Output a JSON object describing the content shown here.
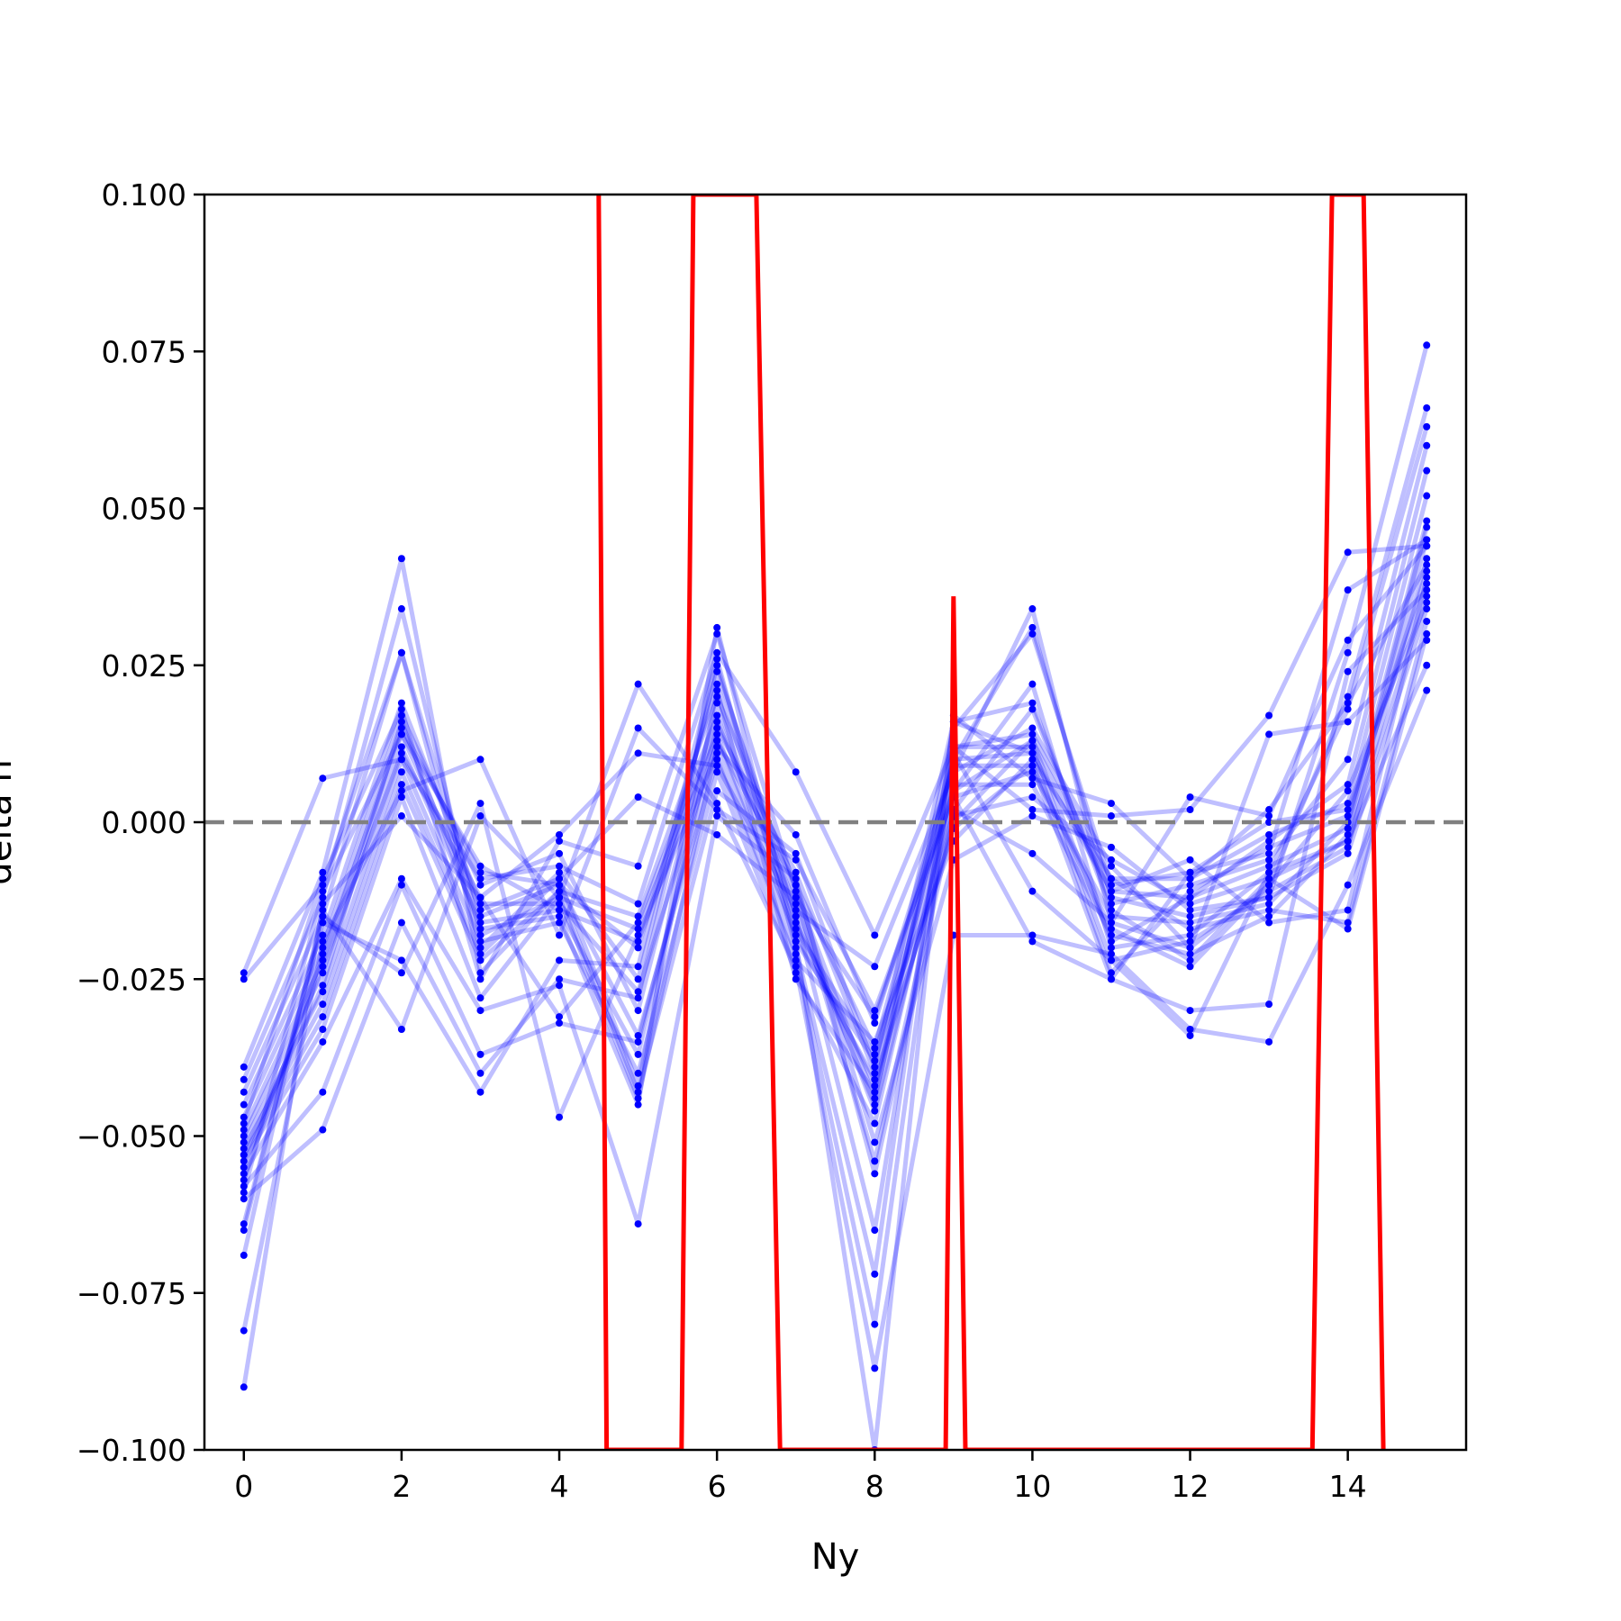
{
  "chart_data": {
    "type": "line",
    "xlabel": "Ny",
    "ylabel": "delta n",
    "xlim": [
      -0.5,
      15.5
    ],
    "ylim": [
      -0.1,
      0.1
    ],
    "x_ticks": [
      0,
      2,
      4,
      6,
      8,
      10,
      12,
      14
    ],
    "x_tick_labels": [
      "0",
      "2",
      "4",
      "6",
      "8",
      "10",
      "12",
      "14"
    ],
    "y_ticks": [
      -0.1,
      -0.075,
      -0.05,
      -0.025,
      0.0,
      0.025,
      0.05,
      0.075,
      0.1
    ],
    "y_tick_labels": [
      "−0.100",
      "−0.075",
      "−0.050",
      "−0.025",
      "0.000",
      "0.025",
      "0.050",
      "0.075",
      "0.100"
    ],
    "reference_line": {
      "y": 0.0,
      "style": "dashed",
      "color": "#808080"
    },
    "series_color": "#0000ff",
    "mean_color": "#ff0000",
    "x": [
      0,
      1,
      2,
      3,
      4,
      5,
      6,
      7,
      8,
      9,
      10,
      11,
      12,
      13,
      14,
      15
    ],
    "series": [
      {
        "values": [
          -0.024,
          0.007,
          0.01,
          -0.009,
          -0.007,
          -0.013,
          0.027,
          0.008,
          -0.018,
          0.012,
          0.002,
          0.001,
          0.002,
          0.017,
          0.043,
          0.044
        ]
      },
      {
        "values": [
          -0.025,
          -0.01,
          0.027,
          -0.015,
          -0.01,
          -0.02,
          0.022,
          -0.015,
          -0.045,
          0.015,
          0.03,
          -0.01,
          -0.008,
          -0.005,
          0.037,
          0.045
        ]
      },
      {
        "values": [
          -0.039,
          -0.008,
          0.042,
          -0.024,
          -0.011,
          -0.015,
          0.02,
          -0.01,
          -0.036,
          0.01,
          0.031,
          -0.012,
          -0.015,
          -0.012,
          0.027,
          0.076
        ]
      },
      {
        "values": [
          -0.041,
          -0.012,
          0.034,
          -0.018,
          -0.012,
          -0.017,
          0.015,
          -0.008,
          -0.04,
          0.008,
          0.034,
          -0.016,
          -0.02,
          -0.01,
          0.02,
          0.066
        ]
      },
      {
        "values": [
          -0.043,
          -0.015,
          0.027,
          -0.02,
          -0.008,
          -0.025,
          0.024,
          -0.012,
          -0.031,
          0.005,
          0.022,
          -0.02,
          -0.018,
          -0.008,
          0.018,
          0.063
        ]
      },
      {
        "values": [
          -0.045,
          -0.018,
          0.019,
          -0.013,
          -0.013,
          -0.027,
          0.013,
          -0.019,
          -0.038,
          0.002,
          0.018,
          -0.013,
          -0.01,
          -0.006,
          0.01,
          0.06
        ]
      },
      {
        "values": [
          -0.047,
          -0.02,
          0.017,
          -0.01,
          -0.005,
          -0.03,
          0.019,
          -0.016,
          -0.042,
          0.0,
          0.013,
          -0.011,
          -0.012,
          -0.003,
          0.006,
          0.056
        ]
      },
      {
        "values": [
          -0.049,
          -0.022,
          0.015,
          -0.008,
          -0.01,
          -0.034,
          0.01,
          -0.022,
          -0.035,
          -0.003,
          0.01,
          -0.009,
          -0.009,
          -0.002,
          0.003,
          0.052
        ]
      },
      {
        "values": [
          -0.05,
          -0.024,
          0.012,
          -0.016,
          -0.014,
          -0.037,
          0.016,
          -0.013,
          -0.046,
          0.004,
          0.008,
          -0.015,
          -0.016,
          -0.013,
          0.0,
          0.048
        ]
      },
      {
        "values": [
          -0.051,
          -0.027,
          0.01,
          -0.019,
          -0.016,
          -0.04,
          0.008,
          -0.024,
          -0.048,
          0.006,
          0.006,
          -0.018,
          -0.021,
          -0.015,
          -0.002,
          0.045
        ]
      },
      {
        "values": [
          -0.052,
          -0.029,
          0.008,
          -0.021,
          -0.009,
          -0.042,
          0.021,
          -0.025,
          -0.043,
          0.012,
          0.012,
          -0.022,
          -0.019,
          -0.011,
          -0.004,
          0.042
        ]
      },
      {
        "values": [
          -0.053,
          -0.031,
          0.006,
          -0.022,
          -0.011,
          -0.043,
          0.005,
          -0.005,
          -0.039,
          0.016,
          0.011,
          -0.024,
          -0.011,
          -0.004,
          0.001,
          0.04
        ]
      },
      {
        "values": [
          -0.054,
          -0.033,
          0.004,
          -0.028,
          -0.012,
          -0.044,
          0.012,
          -0.002,
          -0.032,
          0.009,
          0.009,
          -0.025,
          -0.008,
          0.0,
          0.002,
          0.038
        ]
      },
      {
        "values": [
          -0.056,
          -0.035,
          -0.009,
          -0.03,
          -0.026,
          -0.064,
          0.001,
          -0.009,
          -0.056,
          0.001,
          0.004,
          -0.006,
          -0.013,
          -0.009,
          -0.003,
          0.036
        ]
      },
      {
        "values": [
          -0.058,
          -0.043,
          -0.01,
          -0.037,
          -0.032,
          -0.035,
          0.013,
          -0.01,
          -0.051,
          -0.006,
          0.001,
          -0.004,
          -0.014,
          -0.012,
          -0.005,
          0.034
        ]
      },
      {
        "values": [
          -0.06,
          -0.049,
          -0.016,
          -0.04,
          -0.025,
          -0.028,
          0.025,
          -0.015,
          -0.065,
          0.012,
          0.014,
          -0.009,
          -0.017,
          -0.014,
          -0.016,
          0.032
        ]
      },
      {
        "values": [
          -0.064,
          -0.016,
          -0.022,
          -0.043,
          -0.022,
          -0.023,
          0.026,
          -0.02,
          -0.072,
          0.016,
          0.019,
          -0.014,
          -0.022,
          -0.009,
          -0.017,
          0.03
        ]
      },
      {
        "values": [
          -0.065,
          -0.015,
          -0.024,
          0.003,
          -0.047,
          -0.018,
          0.011,
          -0.021,
          -0.08,
          0.011,
          -0.011,
          -0.022,
          -0.034,
          -0.008,
          -0.003,
          0.025
        ]
      },
      {
        "values": [
          -0.069,
          -0.014,
          -0.033,
          0.001,
          -0.012,
          0.022,
          0.003,
          -0.023,
          -0.087,
          -0.018,
          -0.018,
          -0.021,
          -0.033,
          -0.035,
          -0.01,
          0.021
        ]
      },
      {
        "values": [
          -0.081,
          -0.019,
          0.005,
          0.01,
          -0.018,
          0.015,
          0.002,
          -0.006,
          -0.03,
          0.004,
          -0.019,
          -0.025,
          -0.03,
          -0.029,
          0.024,
          0.037
        ]
      },
      {
        "values": [
          -0.09,
          -0.013,
          0.001,
          -0.012,
          -0.002,
          0.011,
          0.009,
          -0.014,
          -0.023,
          0.008,
          0.015,
          -0.007,
          -0.02,
          0.014,
          0.016,
          0.029
        ]
      },
      {
        "values": [
          -0.059,
          -0.011,
          0.014,
          -0.014,
          -0.009,
          0.004,
          -0.002,
          -0.012,
          -0.054,
          0.002,
          -0.005,
          -0.016,
          0.004,
          0.001,
          0.029,
          0.044
        ]
      },
      {
        "values": [
          -0.048,
          -0.009,
          0.018,
          -0.025,
          -0.003,
          -0.007,
          0.03,
          -0.011,
          -0.044,
          0.01,
          0.011,
          -0.011,
          -0.006,
          -0.016,
          -0.014,
          0.039
        ]
      },
      {
        "values": [
          -0.053,
          -0.026,
          0.016,
          -0.017,
          -0.015,
          -0.045,
          0.031,
          -0.019,
          -0.1,
          0.017,
          0.007,
          0.003,
          -0.009,
          0.002,
          0.019,
          0.041
        ]
      },
      {
        "values": [
          -0.057,
          -0.021,
          0.014,
          -0.007,
          -0.014,
          -0.019,
          0.014,
          -0.018,
          -0.041,
          -0.001,
          0.009,
          -0.017,
          -0.023,
          -0.01,
          0.005,
          0.035
        ]
      },
      {
        "values": [
          -0.055,
          -0.023,
          0.011,
          -0.012,
          -0.031,
          -0.016,
          0.017,
          -0.017,
          -0.037,
          0.005,
          0.013,
          -0.019,
          -0.012,
          -0.007,
          -0.001,
          0.047
        ]
      }
    ],
    "mean_line": {
      "x": [
        4.5,
        4.6,
        5.55,
        5.7,
        6.5,
        6.8,
        8.9,
        9.0,
        9.15,
        13.55,
        13.8,
        14.2,
        14.45
      ],
      "y": [
        0.1,
        -0.1,
        -0.1,
        0.1,
        0.1,
        -0.1,
        -0.1,
        0.036,
        -0.1,
        -0.1,
        0.1,
        0.1,
        -0.1
      ]
    }
  }
}
